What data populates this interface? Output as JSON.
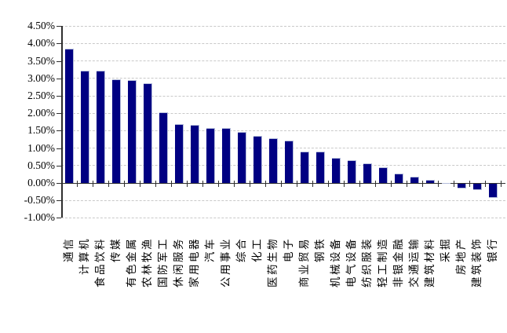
{
  "chart_data": {
    "type": "bar",
    "title": "",
    "xlabel": "",
    "ylabel": "",
    "unit": "%",
    "categories": [
      "通信",
      "计算机",
      "食品饮料",
      "传媒",
      "有色金属",
      "农林牧渔",
      "国防军工",
      "休闲服务",
      "家用电器",
      "汽车",
      "公用事业",
      "综合",
      "化工",
      "医药生物",
      "电子",
      "商业贸易",
      "钢铁",
      "机械设备",
      "电气设备",
      "纺织服装",
      "轻工制造",
      "非银金融",
      "交通运输",
      "建筑材料",
      "采掘",
      "房地产",
      "建筑装饰",
      "银行"
    ],
    "values": [
      3.86,
      3.22,
      3.21,
      2.98,
      2.96,
      2.87,
      2.03,
      1.7,
      1.67,
      1.58,
      1.57,
      1.47,
      1.36,
      1.28,
      1.22,
      0.91,
      0.9,
      0.71,
      0.66,
      0.57,
      0.45,
      0.27,
      0.17,
      0.09,
      0.01,
      -0.13,
      -0.18,
      -0.41
    ],
    "ylim": [
      -1.0,
      4.5
    ],
    "ytick_step": 0.5,
    "ytick_labels": [
      "4.50%",
      "4.00%",
      "3.50%",
      "3.00%",
      "2.50%",
      "2.00%",
      "1.50%",
      "1.00%",
      "0.50%",
      "0.00%",
      "-0.50%",
      "-1.00%"
    ],
    "grid": true,
    "legend": false,
    "bar_color": "#000082",
    "gridline_color": "#c9c9c9",
    "axis_color": "#2f2f2f"
  }
}
